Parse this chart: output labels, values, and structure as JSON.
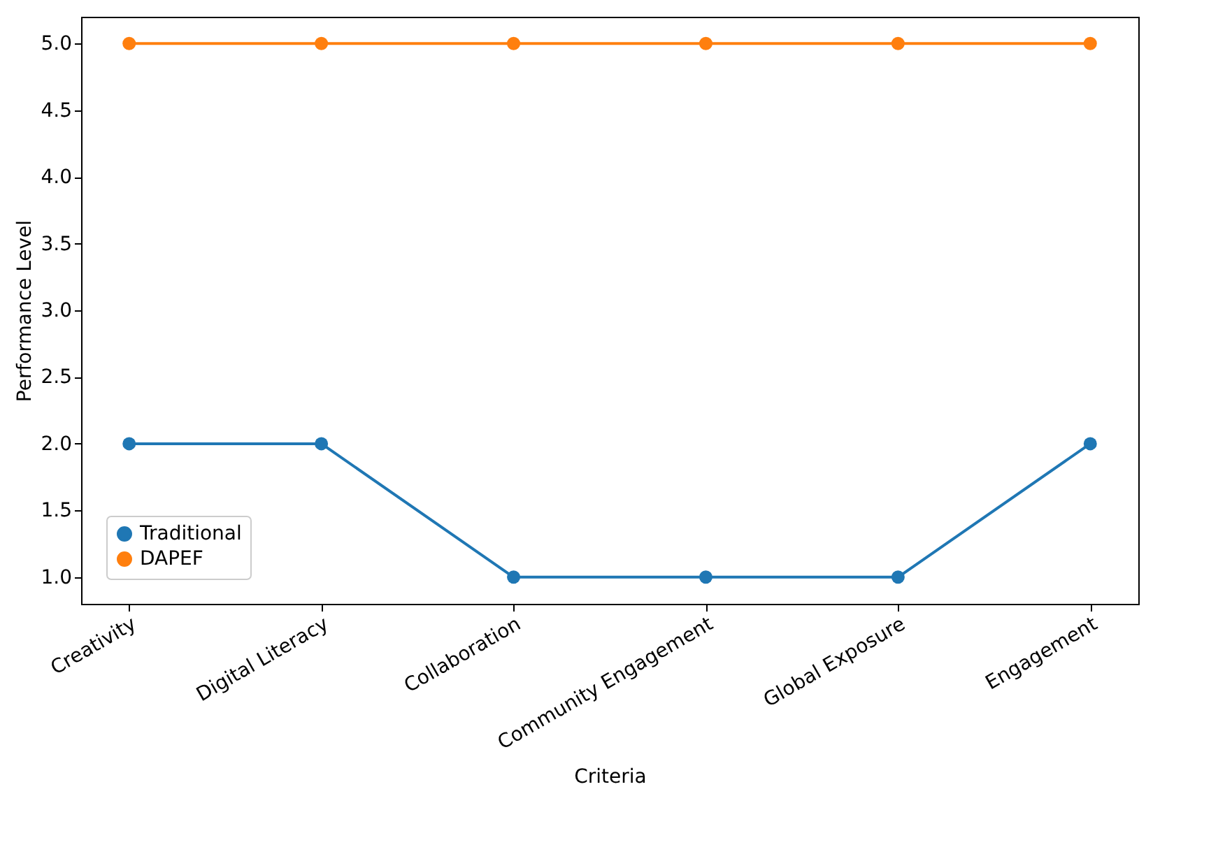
{
  "chart_data": {
    "type": "line",
    "xlabel": "Criteria",
    "ylabel": "Performance Level",
    "categories": [
      "Creativity",
      "Digital Literacy",
      "Collaboration",
      "Community Engagement",
      "Global Exposure",
      "Engagement"
    ],
    "series": [
      {
        "name": "Traditional",
        "color": "#1f77b4",
        "values": [
          2,
          2,
          1,
          1,
          1,
          2
        ]
      },
      {
        "name": "DAPEF",
        "color": "#ff7f0e",
        "values": [
          5,
          5,
          5,
          5,
          5,
          5
        ]
      }
    ],
    "ylim": [
      0.8,
      5.2
    ],
    "yticks": [
      {
        "value": 1,
        "label": "1.0"
      },
      {
        "value": 1.5,
        "label": "1.5"
      },
      {
        "value": 2,
        "label": "2.0"
      },
      {
        "value": 2.5,
        "label": "2.5"
      },
      {
        "value": 3,
        "label": "3.0"
      },
      {
        "value": 3.5,
        "label": "3.5"
      },
      {
        "value": 4,
        "label": "4.0"
      },
      {
        "value": 4.5,
        "label": "4.5"
      },
      {
        "value": 5,
        "label": "5.0"
      }
    ],
    "grid": false,
    "legend": "bottom left",
    "marker": "circle",
    "line_style": "solid"
  }
}
